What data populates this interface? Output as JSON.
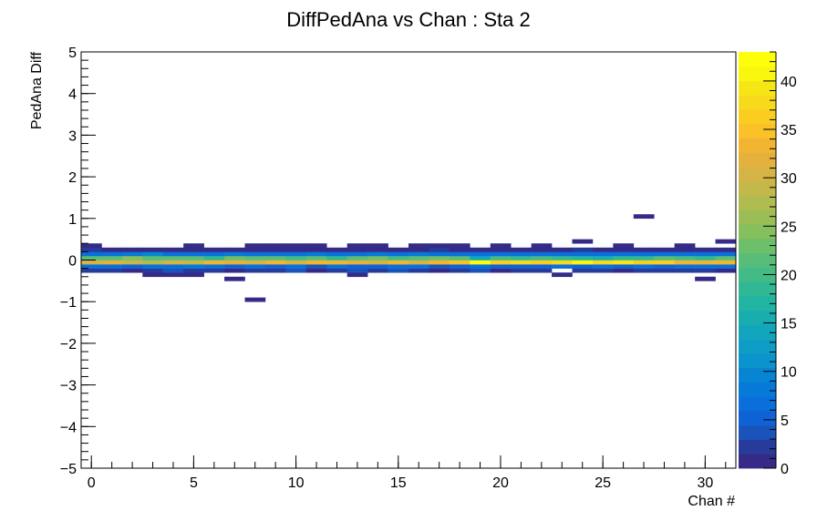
{
  "chart_data": {
    "type": "heatmap",
    "title": "DiffPedAna vs Chan : Sta 2",
    "xlabel": "Chan #",
    "ylabel": "PedAna Diff",
    "xlim": [
      -0.5,
      31.5
    ],
    "ylim": [
      -5,
      5
    ],
    "x_ticks": [
      0,
      5,
      10,
      15,
      20,
      25,
      30
    ],
    "x_tick_labels": [
      "0",
      "5",
      "10",
      "15",
      "20",
      "25",
      "30"
    ],
    "y_ticks": [
      -5,
      -4,
      -3,
      -2,
      -1,
      0,
      1,
      2,
      3,
      4,
      5
    ],
    "y_tick_labels": [
      "−5",
      "−4",
      "−3",
      "−2",
      "−1",
      "0",
      "1",
      "2",
      "3",
      "4",
      "5"
    ],
    "z_range": [
      0,
      43
    ],
    "z_ticks": [
      0,
      5,
      10,
      15,
      20,
      25,
      30,
      35,
      40
    ],
    "z_tick_labels": [
      "0",
      "5",
      "10",
      "15",
      "20",
      "25",
      "30",
      "35",
      "40"
    ],
    "bin_width_y": 0.1,
    "y_bin_centers": [
      -0.95,
      -0.45,
      -0.35,
      -0.25,
      -0.15,
      -0.05,
      0.05,
      0.15,
      0.25,
      0.35,
      0.45,
      1.05
    ],
    "channels": [
      0,
      1,
      2,
      3,
      4,
      5,
      6,
      7,
      8,
      9,
      10,
      11,
      12,
      13,
      14,
      15,
      16,
      17,
      18,
      19,
      20,
      21,
      22,
      23,
      24,
      25,
      26,
      27,
      28,
      29,
      30,
      31
    ],
    "z": [
      [
        0,
        0,
        0,
        0,
        0,
        0,
        0,
        0,
        1,
        0,
        0,
        0,
        0,
        0,
        0,
        0,
        0,
        0,
        0,
        0,
        0,
        0,
        0,
        0,
        0,
        0,
        0,
        0,
        0,
        0,
        0,
        0
      ],
      [
        0,
        0,
        0,
        0,
        0,
        0,
        0,
        1,
        0,
        0,
        0,
        0,
        0,
        0,
        0,
        0,
        0,
        0,
        0,
        0,
        0,
        0,
        0,
        0,
        0,
        0,
        0,
        0,
        0,
        0,
        1,
        0
      ],
      [
        0,
        0,
        0,
        1,
        1,
        1,
        0,
        0,
        0,
        0,
        0,
        0,
        0,
        1,
        0,
        0,
        0,
        0,
        0,
        0,
        0,
        0,
        0,
        1,
        0,
        0,
        0,
        0,
        0,
        0,
        0,
        0
      ],
      [
        2,
        2,
        1,
        2,
        3,
        2,
        2,
        1,
        2,
        2,
        3,
        1,
        2,
        3,
        2,
        3,
        2,
        1,
        2,
        3,
        1,
        2,
        2,
        0,
        2,
        2,
        1,
        2,
        2,
        2,
        2,
        1
      ],
      [
        7,
        7,
        5,
        7,
        7,
        8,
        7,
        5,
        6,
        5,
        7,
        4,
        7,
        5,
        5,
        6,
        6,
        4,
        5,
        7,
        5,
        5,
        5,
        7,
        5,
        7,
        5,
        6,
        5,
        7,
        7,
        7
      ],
      [
        31,
        32,
        29,
        28,
        30,
        29,
        34,
        32,
        30,
        33,
        31,
        33,
        33,
        32,
        31,
        33,
        31,
        33,
        35,
        42,
        36,
        38,
        36,
        38,
        41,
        38,
        39,
        37,
        37,
        34,
        34,
        34
      ],
      [
        21,
        21,
        24,
        22,
        21,
        22,
        19,
        23,
        22,
        22,
        20,
        22,
        19,
        21,
        23,
        20,
        21,
        23,
        22,
        14,
        20,
        18,
        20,
        19,
        17,
        16,
        18,
        19,
        21,
        20,
        19,
        21
      ],
      [
        7,
        7,
        8,
        9,
        7,
        7,
        7,
        8,
        7,
        6,
        7,
        8,
        7,
        7,
        8,
        7,
        8,
        7,
        7,
        6,
        7,
        6,
        6,
        6,
        7,
        6,
        7,
        6,
        6,
        6,
        7,
        6
      ],
      [
        2,
        1,
        1,
        1,
        1,
        1,
        1,
        1,
        1,
        1,
        1,
        1,
        1,
        1,
        1,
        1,
        1,
        2,
        1,
        1,
        1,
        1,
        1,
        1,
        2,
        1,
        1,
        1,
        1,
        1,
        1,
        1
      ],
      [
        1,
        0,
        0,
        0,
        0,
        1,
        0,
        0,
        1,
        1,
        1,
        1,
        0,
        1,
        1,
        0,
        1,
        1,
        1,
        0,
        1,
        0,
        1,
        0,
        0,
        0,
        1,
        0,
        0,
        1,
        0,
        0
      ],
      [
        0,
        0,
        0,
        0,
        0,
        0,
        0,
        0,
        0,
        0,
        0,
        0,
        0,
        0,
        0,
        0,
        0,
        0,
        0,
        0,
        0,
        0,
        0,
        0,
        1,
        0,
        0,
        0,
        0,
        0,
        0,
        1
      ],
      [
        0,
        0,
        0,
        0,
        0,
        0,
        0,
        0,
        0,
        0,
        0,
        0,
        0,
        0,
        0,
        0,
        0,
        0,
        0,
        0,
        0,
        0,
        0,
        0,
        0,
        0,
        0,
        1,
        0,
        0,
        0,
        0
      ]
    ],
    "palette": [
      "#352a87",
      "#273c9a",
      "#1a54ba",
      "#0f62d6",
      "#0a6fdb",
      "#0779d6",
      "#0785d3",
      "#0a93cd",
      "#0d9dc5",
      "#12a6bc",
      "#19adb0",
      "#22b4a3",
      "#30b895",
      "#43bb86",
      "#58bd78",
      "#6ebf6a",
      "#85bf5e",
      "#9bbd56",
      "#b0bb50",
      "#c4b84b",
      "#d5b445",
      "#e4b13d",
      "#f2b532",
      "#fac128",
      "#fccd21",
      "#f8da1c",
      "#f7e616",
      "#f9f70d",
      "#fdff0a"
    ],
    "grid": false,
    "legend": "colorbar-right"
  }
}
